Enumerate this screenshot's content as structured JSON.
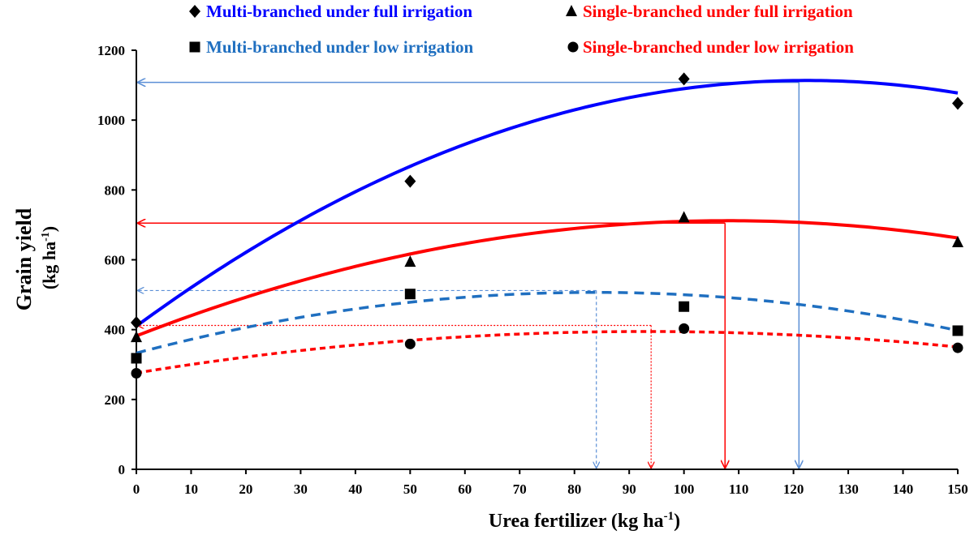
{
  "chart_data": {
    "type": "scatter",
    "xlabel": {
      "main": "Urea fertilizer (kg ha",
      "sup": "-1",
      "tail": ")"
    },
    "ylabel": {
      "line1": "Grain yield",
      "line2_main": "(kg ha",
      "line2_sup": "-1",
      "line2_tail": ")"
    },
    "xlim": [
      0,
      150
    ],
    "ylim": [
      0,
      1200
    ],
    "xticks": [
      0,
      10,
      20,
      30,
      40,
      50,
      60,
      70,
      80,
      90,
      100,
      110,
      120,
      130,
      140,
      150
    ],
    "yticks": [
      0,
      200,
      400,
      600,
      800,
      1000,
      1200
    ],
    "grid": false,
    "legend_position": "top",
    "series": [
      {
        "name": "Multi-branched under full irrigation",
        "marker": "diamond",
        "color": "#0000FF",
        "label_color": "#0000FF",
        "line_style": "solid",
        "x": [
          0,
          50,
          100,
          150
        ],
        "y": [
          420,
          825,
          1118,
          1048
        ],
        "fit": [
          410,
          11.5,
          -0.047
        ],
        "optimum": {
          "x": 121,
          "y": 1108
        }
      },
      {
        "name": "Single-branched under full irrigation",
        "marker": "triangle",
        "color": "#FF0000",
        "label_color": "#FF0000",
        "line_style": "solid",
        "x": [
          0,
          50,
          100,
          150
        ],
        "y": [
          378,
          594,
          721,
          650
        ],
        "fit": [
          382,
          6.1,
          -0.0282
        ],
        "optimum": {
          "x": 107.5,
          "y": 705
        }
      },
      {
        "name": "Multi-branched under low irrigation",
        "marker": "square",
        "color": "#1F6FC0",
        "label_color": "#1F6FC0",
        "line_style": "dashed",
        "x": [
          0,
          50,
          100,
          150
        ],
        "y": [
          318,
          502,
          466,
          397
        ],
        "fit": [
          333,
          4.15,
          -0.0248
        ],
        "optimum": {
          "x": 84,
          "y": 512
        }
      },
      {
        "name": "Single-branched under low irrigation",
        "marker": "circle",
        "color": "#FF0000",
        "label_color": "#FF0000",
        "line_style": "dotted",
        "x": [
          0,
          50,
          100,
          150
        ],
        "y": [
          275,
          359,
          403,
          348
        ],
        "fit": [
          276,
          2.55,
          -0.0137
        ],
        "optimum": {
          "x": 94,
          "y": 412
        }
      }
    ]
  }
}
